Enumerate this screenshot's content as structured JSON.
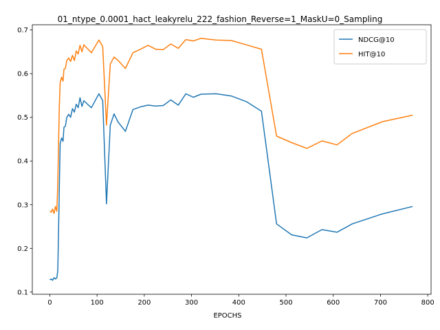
{
  "chart_data": {
    "type": "line",
    "title": "01_ntype_0.0001_hact_leakyrelu_222_fashion_Reverse=1_MaskU=0_Sampling",
    "xlabel": "EPOCHS",
    "ylabel": "",
    "xlim": [
      -37,
      807
    ],
    "ylim": [
      0.095,
      0.712
    ],
    "x_ticks": [
      0,
      100,
      200,
      300,
      400,
      500,
      600,
      700,
      800
    ],
    "y_ticks": [
      0.1,
      0.2,
      0.3,
      0.4,
      0.5,
      0.6,
      0.7
    ],
    "legend_position": "top-right",
    "grid": false,
    "series": [
      {
        "name": "NDCG@10",
        "color": "#1f77b4",
        "points": [
          [
            0,
            0.128
          ],
          [
            3,
            0.13
          ],
          [
            6,
            0.127
          ],
          [
            9,
            0.133
          ],
          [
            12,
            0.13
          ],
          [
            15,
            0.133
          ],
          [
            17,
            0.15
          ],
          [
            20,
            0.33
          ],
          [
            22,
            0.44
          ],
          [
            25,
            0.453
          ],
          [
            28,
            0.445
          ],
          [
            30,
            0.477
          ],
          [
            33,
            0.48
          ],
          [
            36,
            0.5
          ],
          [
            40,
            0.507
          ],
          [
            44,
            0.5
          ],
          [
            48,
            0.52
          ],
          [
            52,
            0.512
          ],
          [
            56,
            0.53
          ],
          [
            60,
            0.522
          ],
          [
            64,
            0.545
          ],
          [
            68,
            0.525
          ],
          [
            72,
            0.538
          ],
          [
            88,
            0.522
          ],
          [
            104,
            0.554
          ],
          [
            112,
            0.538
          ],
          [
            120,
            0.302
          ],
          [
            128,
            0.482
          ],
          [
            136,
            0.508
          ],
          [
            144,
            0.49
          ],
          [
            160,
            0.468
          ],
          [
            176,
            0.518
          ],
          [
            192,
            0.524
          ],
          [
            208,
            0.528
          ],
          [
            224,
            0.526
          ],
          [
            240,
            0.527
          ],
          [
            256,
            0.54
          ],
          [
            272,
            0.528
          ],
          [
            288,
            0.554
          ],
          [
            304,
            0.546
          ],
          [
            320,
            0.553
          ],
          [
            352,
            0.554
          ],
          [
            384,
            0.549
          ],
          [
            416,
            0.536
          ],
          [
            448,
            0.514
          ],
          [
            480,
            0.256
          ],
          [
            512,
            0.231
          ],
          [
            544,
            0.224
          ],
          [
            576,
            0.243
          ],
          [
            608,
            0.237
          ],
          [
            640,
            0.256
          ],
          [
            704,
            0.279
          ],
          [
            768,
            0.296
          ]
        ]
      },
      {
        "name": "HIT@10",
        "color": "#ff7f0e",
        "points": [
          [
            0,
            0.285
          ],
          [
            3,
            0.283
          ],
          [
            6,
            0.29
          ],
          [
            9,
            0.28
          ],
          [
            12,
            0.296
          ],
          [
            15,
            0.285
          ],
          [
            17,
            0.35
          ],
          [
            20,
            0.52
          ],
          [
            22,
            0.58
          ],
          [
            25,
            0.592
          ],
          [
            28,
            0.583
          ],
          [
            30,
            0.61
          ],
          [
            33,
            0.612
          ],
          [
            36,
            0.63
          ],
          [
            40,
            0.636
          ],
          [
            44,
            0.628
          ],
          [
            48,
            0.642
          ],
          [
            52,
            0.63
          ],
          [
            56,
            0.652
          ],
          [
            60,
            0.645
          ],
          [
            64,
            0.665
          ],
          [
            68,
            0.65
          ],
          [
            72,
            0.666
          ],
          [
            88,
            0.648
          ],
          [
            104,
            0.677
          ],
          [
            112,
            0.662
          ],
          [
            120,
            0.482
          ],
          [
            128,
            0.622
          ],
          [
            136,
            0.638
          ],
          [
            144,
            0.631
          ],
          [
            160,
            0.612
          ],
          [
            176,
            0.648
          ],
          [
            192,
            0.656
          ],
          [
            208,
            0.665
          ],
          [
            224,
            0.656
          ],
          [
            240,
            0.655
          ],
          [
            256,
            0.668
          ],
          [
            272,
            0.658
          ],
          [
            288,
            0.678
          ],
          [
            304,
            0.675
          ],
          [
            320,
            0.681
          ],
          [
            352,
            0.677
          ],
          [
            384,
            0.676
          ],
          [
            416,
            0.666
          ],
          [
            448,
            0.656
          ],
          [
            480,
            0.457
          ],
          [
            512,
            0.442
          ],
          [
            544,
            0.429
          ],
          [
            576,
            0.446
          ],
          [
            608,
            0.437
          ],
          [
            640,
            0.463
          ],
          [
            704,
            0.49
          ],
          [
            768,
            0.505
          ]
        ]
      }
    ]
  }
}
